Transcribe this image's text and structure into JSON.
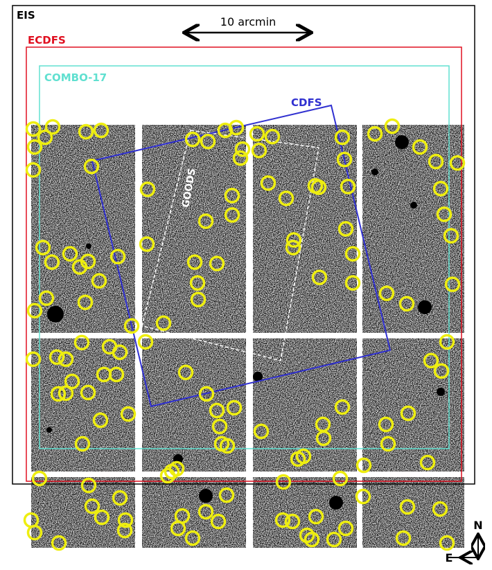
{
  "labels": {
    "eis": "EIS",
    "ecdfs": "ECDFS",
    "combo17": "COMBO-17",
    "cdfs": "CDFS",
    "goods": "GOODS",
    "scale_bar": "10 arcmin",
    "north": "N",
    "east": "E"
  }
}
